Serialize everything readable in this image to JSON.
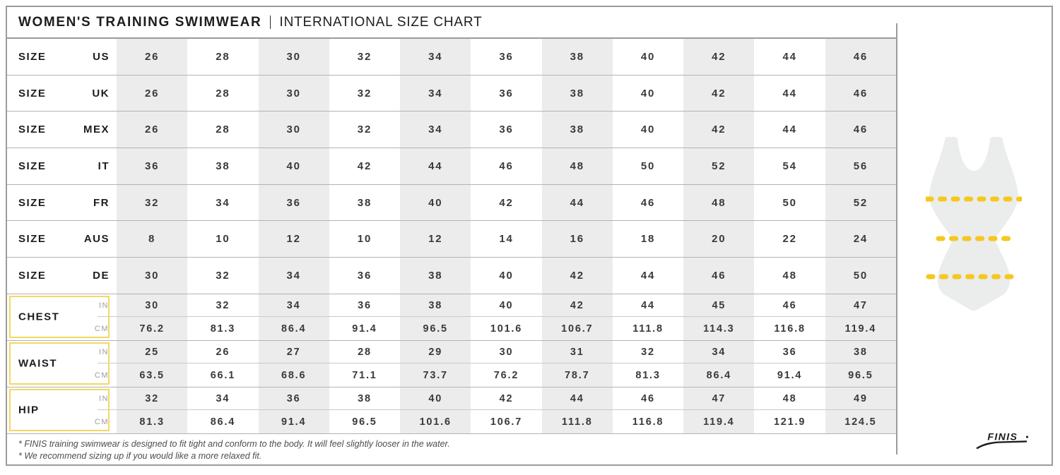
{
  "title": {
    "main": "WOMEN'S TRAINING SWIMWEAR",
    "separator": "|",
    "sub": "INTERNATIONAL SIZE CHART"
  },
  "chart_data": {
    "type": "table",
    "title": "WOMEN'S TRAINING SWIMWEAR | INTERNATIONAL SIZE CHART",
    "columns_count": 11,
    "size_rows": [
      {
        "category": "SIZE",
        "region": "US",
        "values": [
          "26",
          "28",
          "30",
          "32",
          "34",
          "36",
          "38",
          "40",
          "42",
          "44",
          "46"
        ]
      },
      {
        "category": "SIZE",
        "region": "UK",
        "values": [
          "26",
          "28",
          "30",
          "32",
          "34",
          "36",
          "38",
          "40",
          "42",
          "44",
          "46"
        ]
      },
      {
        "category": "SIZE",
        "region": "MEX",
        "values": [
          "26",
          "28",
          "30",
          "32",
          "34",
          "36",
          "38",
          "40",
          "42",
          "44",
          "46"
        ]
      },
      {
        "category": "SIZE",
        "region": "IT",
        "values": [
          "36",
          "38",
          "40",
          "42",
          "44",
          "46",
          "48",
          "50",
          "52",
          "54",
          "56"
        ]
      },
      {
        "category": "SIZE",
        "region": "FR",
        "values": [
          "32",
          "34",
          "36",
          "38",
          "40",
          "42",
          "44",
          "46",
          "48",
          "50",
          "52"
        ]
      },
      {
        "category": "SIZE",
        "region": "AUS",
        "values": [
          "8",
          "10",
          "12",
          "10",
          "12",
          "14",
          "16",
          "18",
          "20",
          "22",
          "24"
        ]
      },
      {
        "category": "SIZE",
        "region": "DE",
        "values": [
          "30",
          "32",
          "34",
          "36",
          "38",
          "40",
          "42",
          "44",
          "46",
          "48",
          "50"
        ]
      }
    ],
    "measurement_rows": [
      {
        "label": "CHEST",
        "units": [
          {
            "unit": "IN",
            "values": [
              "30",
              "32",
              "34",
              "36",
              "38",
              "40",
              "42",
              "44",
              "45",
              "46",
              "47"
            ]
          },
          {
            "unit": "CM",
            "values": [
              "76.2",
              "81.3",
              "86.4",
              "91.4",
              "96.5",
              "101.6",
              "106.7",
              "111.8",
              "114.3",
              "116.8",
              "119.4"
            ]
          }
        ]
      },
      {
        "label": "WAIST",
        "units": [
          {
            "unit": "IN",
            "values": [
              "25",
              "26",
              "27",
              "28",
              "29",
              "30",
              "31",
              "32",
              "34",
              "36",
              "38"
            ]
          },
          {
            "unit": "CM",
            "values": [
              "63.5",
              "66.1",
              "68.6",
              "71.1",
              "73.7",
              "76.2",
              "78.7",
              "81.3",
              "86.4",
              "91.4",
              "96.5"
            ]
          }
        ]
      },
      {
        "label": "HIP",
        "units": [
          {
            "unit": "IN",
            "values": [
              "32",
              "34",
              "36",
              "38",
              "40",
              "42",
              "44",
              "46",
              "47",
              "48",
              "49"
            ]
          },
          {
            "unit": "CM",
            "values": [
              "81.3",
              "86.4",
              "91.4",
              "96.5",
              "101.6",
              "106.7",
              "111.8",
              "116.8",
              "119.4",
              "121.9",
              "124.5"
            ]
          }
        ]
      }
    ]
  },
  "notes": [
    "* FINIS training swimwear is designed to fit tight and conform to the body. It will feel slightly looser in the water.",
    "* We recommend sizing up if you would like a more relaxed fit."
  ],
  "brand": {
    "name": "FINIS"
  },
  "illustration": {
    "name": "womens-one-piece-swimsuit",
    "measure_lines": [
      "chest",
      "waist",
      "hip"
    ]
  },
  "colors": {
    "accent_yellow_box": "#f2d863",
    "accent_yellow_dash": "#f6c71e",
    "column_shade": "#ececec",
    "frame_border": "#9b9b9b",
    "suit_fill": "#ebecec",
    "text_dark": "#1d1d1b",
    "text_value": "#3a3a3a",
    "text_muted": "#9c9c9c"
  }
}
